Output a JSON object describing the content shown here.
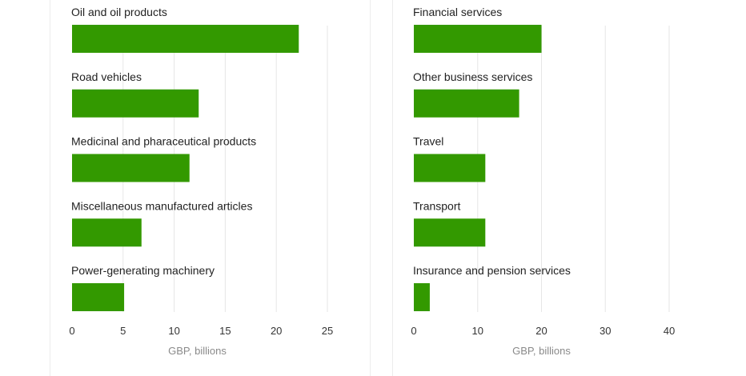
{
  "colors": {
    "bar": "#339900",
    "grid": "#e6e6e6",
    "divider": "#ececec"
  },
  "chart_data": [
    {
      "type": "bar",
      "orientation": "horizontal",
      "title": "",
      "xlabel": "GBP, billions",
      "ylabel": "",
      "xlim": [
        0,
        25
      ],
      "xticks": [
        "0",
        "5",
        "10",
        "15",
        "20",
        "25"
      ],
      "grid": true,
      "categories": [
        "Oil and oil products",
        "Road vehicles",
        "Medicinal and pharaceutical products",
        "Miscellaneous manufactured articles",
        "Power-generating machinery"
      ],
      "values": [
        22.2,
        12.4,
        11.5,
        6.8,
        5.1
      ]
    },
    {
      "type": "bar",
      "orientation": "horizontal",
      "title": "",
      "xlabel": "GBP, billions",
      "ylabel": "",
      "xlim": [
        0,
        40
      ],
      "xticks": [
        "0",
        "10",
        "20",
        "30",
        "40"
      ],
      "grid": true,
      "categories": [
        "Financial services",
        "Other business services",
        "Travel",
        "Transport",
        "Insurance and pension services"
      ],
      "values": [
        20.0,
        16.5,
        11.2,
        11.2,
        2.5
      ]
    }
  ]
}
